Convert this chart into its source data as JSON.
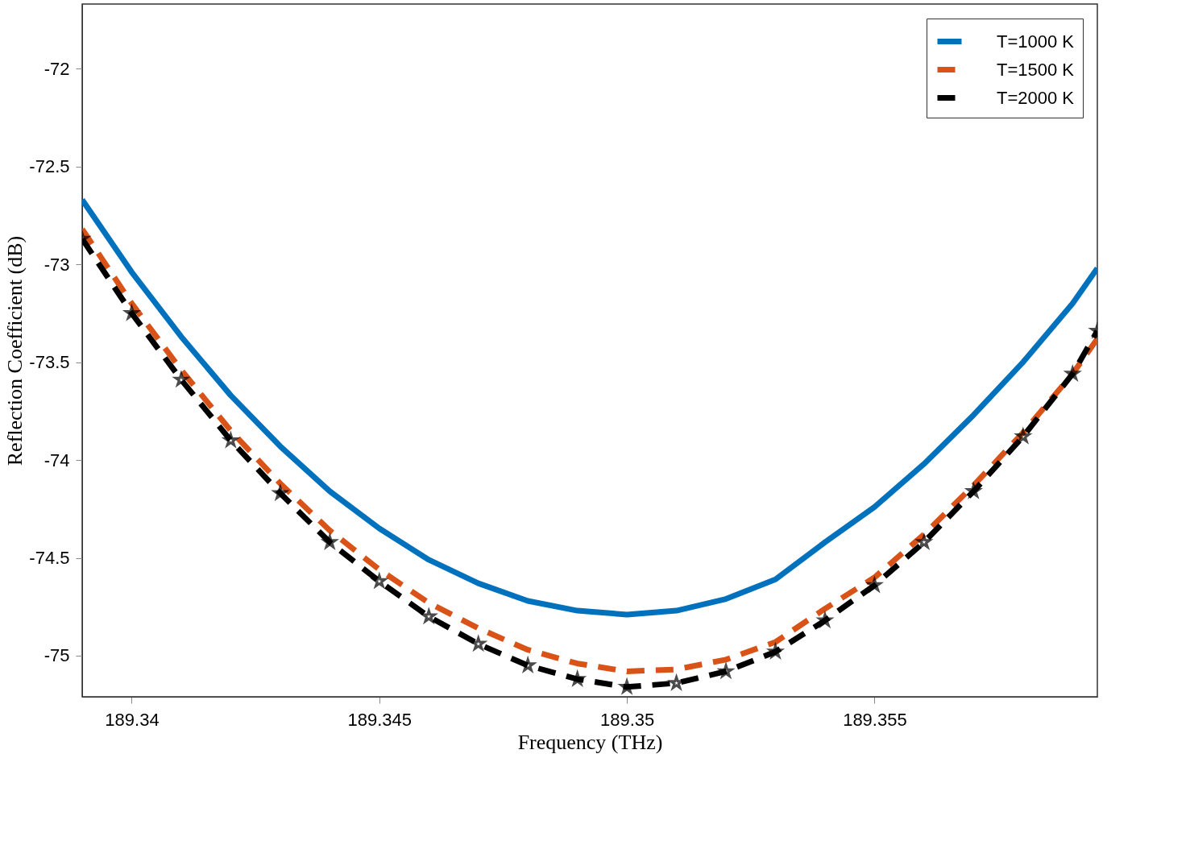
{
  "chart_data": {
    "type": "line",
    "xlabel": "Frequency (THz)",
    "ylabel": "Reflection Coefficient (dB)",
    "x": [
      189.339,
      189.34,
      189.341,
      189.342,
      189.343,
      189.344,
      189.345,
      189.346,
      189.347,
      189.348,
      189.349,
      189.35,
      189.351,
      189.352,
      189.353,
      189.354,
      189.355,
      189.356,
      189.357,
      189.358,
      189.359,
      189.3595
    ],
    "series": [
      {
        "name": "T=1000 K",
        "color": "#0072bd",
        "line_style": "solid",
        "marker": "none",
        "values": [
          -72.67,
          -73.04,
          -73.37,
          -73.67,
          -73.93,
          -74.16,
          -74.35,
          -74.51,
          -74.63,
          -74.72,
          -74.77,
          -74.79,
          -74.77,
          -74.71,
          -74.61,
          -74.42,
          -74.24,
          -74.02,
          -73.77,
          -73.5,
          -73.2,
          -73.02
        ]
      },
      {
        "name": "T=1500 K",
        "color": "#d95319",
        "line_style": "dashed",
        "marker": "none",
        "values": [
          -72.82,
          -73.2,
          -73.54,
          -73.85,
          -74.12,
          -74.36,
          -74.56,
          -74.73,
          -74.86,
          -74.97,
          -75.04,
          -75.08,
          -75.07,
          -75.02,
          -74.93,
          -74.76,
          -74.6,
          -74.38,
          -74.13,
          -73.86,
          -73.56,
          -73.38
        ]
      },
      {
        "name": "T=2000 K",
        "color": "#000000",
        "line_style": "dashed",
        "marker": "star",
        "values": [
          -72.87,
          -73.25,
          -73.59,
          -73.9,
          -74.17,
          -74.42,
          -74.62,
          -74.8,
          -74.94,
          -75.05,
          -75.12,
          -75.16,
          -75.14,
          -75.08,
          -74.98,
          -74.82,
          -74.64,
          -74.42,
          -74.16,
          -73.88,
          -73.56,
          -73.34
        ]
      }
    ],
    "xlim": [
      189.339,
      189.3595
    ],
    "xticks": [
      189.34,
      189.345,
      189.35,
      189.355
    ],
    "ylim": [
      -75.21,
      -71.67
    ],
    "yticks": [
      -75,
      -74.5,
      -74,
      -73.5,
      -73,
      -72.5,
      -72
    ],
    "grid": false,
    "legend": "top right"
  }
}
